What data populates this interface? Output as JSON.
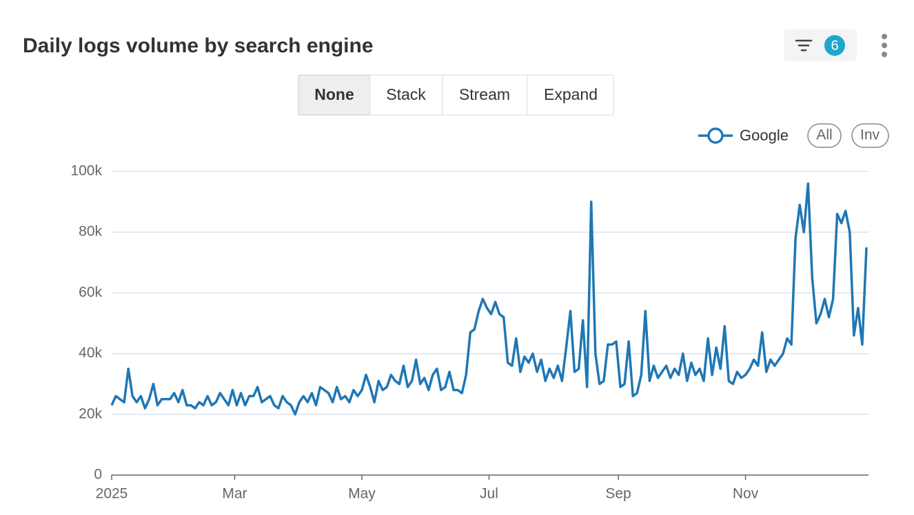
{
  "title": "Daily logs volume by search engine",
  "filter_count": "6",
  "modes": [
    "None",
    "Stack",
    "Stream",
    "Expand"
  ],
  "legend_buttons": [
    "All",
    "Inv"
  ],
  "chart_data": {
    "type": "line",
    "x": [
      0,
      2,
      4,
      6,
      8,
      10,
      12,
      14,
      16,
      18,
      20,
      22,
      24,
      26,
      28,
      30,
      32,
      34,
      36,
      38,
      40,
      42,
      44,
      46,
      48,
      50,
      52,
      54,
      56,
      58,
      60,
      62,
      64,
      66,
      68,
      70,
      72,
      74,
      76,
      78,
      80,
      82,
      84,
      86,
      88,
      90,
      92,
      94,
      96,
      98,
      100,
      102,
      104,
      106,
      108,
      110,
      112,
      114,
      116,
      118,
      120,
      122,
      124,
      126,
      128,
      130,
      132,
      134,
      136,
      138,
      140,
      142,
      144,
      146,
      148,
      150,
      152,
      154,
      156,
      158,
      160,
      162,
      164,
      166,
      168,
      170,
      172,
      174,
      176,
      178,
      180,
      182,
      184,
      186,
      188,
      190,
      192,
      194,
      196,
      198,
      200,
      202,
      204,
      206,
      208,
      210,
      212,
      214,
      216,
      218,
      220,
      222,
      224,
      226,
      228,
      230,
      232,
      234,
      236,
      238,
      240,
      242,
      244,
      246,
      248,
      250,
      252,
      254,
      256,
      258,
      260,
      262,
      264,
      266,
      268,
      270,
      272,
      274,
      276,
      278,
      280,
      282,
      284,
      286,
      288,
      290,
      292,
      294,
      296,
      298,
      300,
      302,
      304,
      306,
      308,
      310,
      312,
      314,
      316,
      318,
      320,
      322,
      324,
      326,
      328,
      330,
      332,
      334,
      336,
      338,
      340,
      342,
      344,
      346,
      348,
      350,
      352,
      354,
      356,
      358,
      360,
      362
    ],
    "series": [
      {
        "name": "Google",
        "color": "#1f77b4",
        "values": [
          23000,
          26000,
          25000,
          24000,
          35000,
          26000,
          24000,
          26000,
          22000,
          25000,
          30000,
          23000,
          25000,
          25000,
          25000,
          27000,
          24000,
          28000,
          23000,
          23000,
          22000,
          24000,
          23000,
          26000,
          23000,
          24000,
          27000,
          25000,
          23000,
          28000,
          23000,
          27000,
          23000,
          26000,
          26000,
          29000,
          24000,
          25000,
          26000,
          23000,
          22000,
          26000,
          24000,
          23000,
          20000,
          24000,
          26000,
          24000,
          27000,
          23000,
          29000,
          28000,
          27000,
          24000,
          29000,
          25000,
          26000,
          24000,
          28000,
          26000,
          28000,
          33000,
          29000,
          24000,
          31000,
          28000,
          29000,
          33000,
          31000,
          30000,
          36000,
          29000,
          31000,
          38000,
          30000,
          32000,
          28000,
          33000,
          35000,
          28000,
          29000,
          34000,
          28000,
          28000,
          27000,
          33000,
          47000,
          48000,
          54000,
          58000,
          55000,
          53000,
          57000,
          53000,
          52000,
          37000,
          36000,
          45000,
          34000,
          39000,
          37000,
          40000,
          34000,
          38000,
          31000,
          35000,
          32000,
          36000,
          31000,
          42000,
          54000,
          34000,
          35000,
          51000,
          29000,
          90000,
          40000,
          30000,
          31000,
          43000,
          43000,
          44000,
          29000,
          30000,
          44000,
          26000,
          27000,
          33000,
          54000,
          31000,
          36000,
          32000,
          34000,
          36000,
          32000,
          35000,
          33000,
          40000,
          31000,
          37000,
          33000,
          35000,
          31000,
          45000,
          33000,
          42000,
          35000,
          49000,
          31000,
          30000,
          34000,
          32000,
          33000,
          35000,
          38000,
          36000,
          47000,
          34000,
          38000,
          36000,
          38000,
          40000,
          45000,
          43000,
          78000,
          89000,
          80000,
          96000,
          65000,
          50000,
          53000,
          58000,
          52000,
          58000,
          86000,
          83000,
          87000,
          80000,
          46000,
          55000,
          43000,
          75000
        ]
      }
    ],
    "xlim": [
      0,
      363
    ],
    "xticks": [
      {
        "value": 0,
        "label": "2025"
      },
      {
        "value": 59,
        "label": "Mar"
      },
      {
        "value": 120,
        "label": "May"
      },
      {
        "value": 181,
        "label": "Jul"
      },
      {
        "value": 243,
        "label": "Sep"
      },
      {
        "value": 304,
        "label": "Nov"
      }
    ],
    "ylim": [
      0,
      100000
    ],
    "yticks": [
      0,
      {
        "value": 20000,
        "label": "20k"
      },
      {
        "value": 40000,
        "label": "40k"
      },
      {
        "value": 60000,
        "label": "60k"
      },
      {
        "value": 80000,
        "label": "80k"
      },
      {
        "value": 100000,
        "label": "100k"
      }
    ],
    "grid": true
  }
}
